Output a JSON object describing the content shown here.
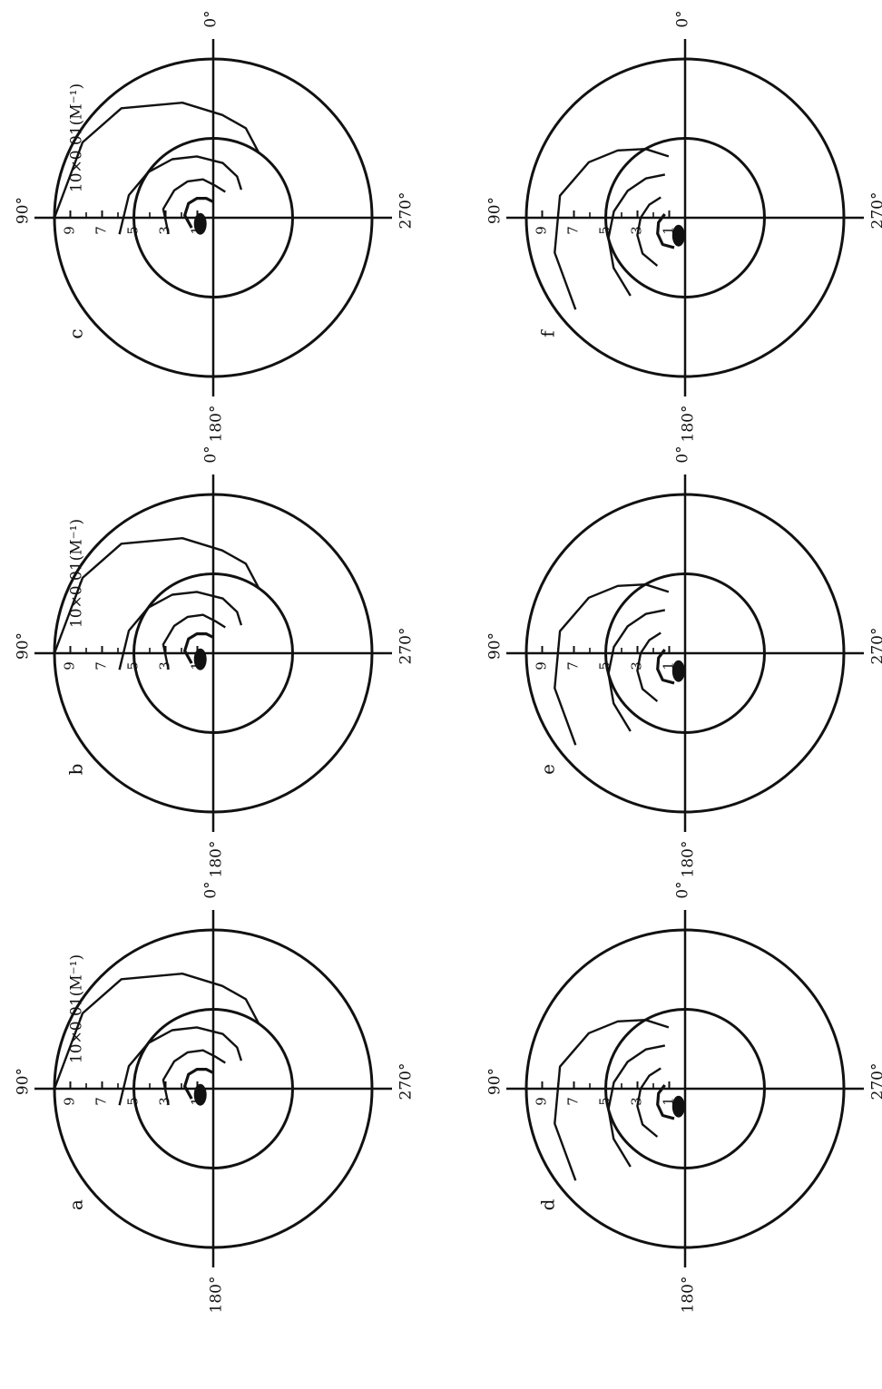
{
  "figure": {
    "panel_labels": [
      "a",
      "b",
      "c",
      "d",
      "e",
      "f"
    ],
    "angle_labels": {
      "right": "0°",
      "top": "90°",
      "left": "180°",
      "bottom": "270°"
    },
    "scale_text": "10×0.01(M⁻¹)",
    "radial_tick_labels": [
      "9",
      "7",
      "5",
      "3",
      "1"
    ],
    "line_color": "#111111"
  },
  "chart_data": [
    {
      "type": "polar-contour",
      "panel": "a",
      "angle_labels": [
        "0°",
        "90°",
        "180°",
        "270°"
      ],
      "radial_ticks": [
        1,
        3,
        5,
        7,
        9
      ],
      "scale": "10×0.01(M⁻¹)",
      "reference_circles": [
        5,
        10
      ],
      "contours": [
        {
          "level": "outer",
          "points": [
            [
              10,
              90
            ],
            [
              9.5,
              60
            ],
            [
              9,
              40
            ],
            [
              7.5,
              15
            ],
            [
              6.5,
              -5
            ],
            [
              6,
              -20
            ],
            [
              5,
              -35
            ]
          ]
        },
        {
          "level": 5,
          "points": [
            [
              6,
              100
            ],
            [
              5.5,
              75
            ],
            [
              5,
              55
            ],
            [
              4.5,
              35
            ],
            [
              4,
              15
            ],
            [
              3.5,
              -10
            ],
            [
              3,
              -30
            ],
            [
              2.5,
              -45
            ]
          ]
        },
        {
          "level": 3,
          "points": [
            [
              3,
              110
            ],
            [
              3.2,
              80
            ],
            [
              3,
              55
            ],
            [
              2.8,
              35
            ],
            [
              2.5,
              15
            ],
            [
              2,
              -5
            ],
            [
              1.8,
              -25
            ]
          ]
        },
        {
          "level": 1,
          "points": [
            [
              1.5,
              115
            ],
            [
              1.8,
              85
            ],
            [
              1.8,
              60
            ],
            [
              1.6,
              40
            ],
            [
              1.3,
              20
            ],
            [
              1,
              0
            ]
          ]
        }
      ]
    },
    {
      "type": "polar-contour",
      "panel": "b",
      "angle_labels": [
        "0°",
        "90°",
        "180°",
        "270°"
      ],
      "radial_ticks": [
        1,
        3,
        5,
        7,
        9
      ],
      "scale": "10×0.01(M⁻¹)",
      "reference_circles": [
        5,
        10
      ],
      "contours": [
        {
          "level": "outer",
          "points": [
            [
              10,
              90
            ],
            [
              9.5,
              60
            ],
            [
              9,
              40
            ],
            [
              7.5,
              15
            ],
            [
              6.5,
              -5
            ],
            [
              6,
              -20
            ],
            [
              5,
              -35
            ]
          ]
        },
        {
          "level": 5,
          "points": [
            [
              6,
              100
            ],
            [
              5.5,
              75
            ],
            [
              5,
              55
            ],
            [
              4.5,
              35
            ],
            [
              4,
              15
            ],
            [
              3.5,
              -10
            ],
            [
              3,
              -30
            ],
            [
              2.5,
              -45
            ]
          ]
        },
        {
          "level": 3,
          "points": [
            [
              3,
              110
            ],
            [
              3.2,
              80
            ],
            [
              3,
              55
            ],
            [
              2.8,
              35
            ],
            [
              2.5,
              15
            ],
            [
              2,
              -5
            ],
            [
              1.8,
              -25
            ]
          ]
        },
        {
          "level": 1,
          "points": [
            [
              1.5,
              115
            ],
            [
              1.8,
              85
            ],
            [
              1.8,
              60
            ],
            [
              1.6,
              40
            ],
            [
              1.3,
              20
            ],
            [
              1,
              0
            ]
          ]
        }
      ]
    },
    {
      "type": "polar-contour",
      "panel": "c",
      "angle_labels": [
        "0°",
        "90°",
        "180°",
        "270°"
      ],
      "radial_ticks": [
        1,
        3,
        5,
        7,
        9
      ],
      "scale": "10×0.01(M⁻¹)",
      "reference_circles": [
        5,
        10
      ],
      "contours": [
        {
          "level": "outer",
          "points": [
            [
              10,
              90
            ],
            [
              9.5,
              60
            ],
            [
              9,
              40
            ],
            [
              7.5,
              15
            ],
            [
              6.5,
              -5
            ],
            [
              6,
              -20
            ],
            [
              5,
              -35
            ]
          ]
        },
        {
          "level": 5,
          "points": [
            [
              6,
              100
            ],
            [
              5.5,
              75
            ],
            [
              5,
              55
            ],
            [
              4.5,
              35
            ],
            [
              4,
              15
            ],
            [
              3.5,
              -10
            ],
            [
              3,
              -30
            ],
            [
              2.5,
              -45
            ]
          ]
        },
        {
          "level": 3,
          "points": [
            [
              3,
              110
            ],
            [
              3.2,
              80
            ],
            [
              3,
              55
            ],
            [
              2.8,
              35
            ],
            [
              2.5,
              15
            ],
            [
              2,
              -5
            ],
            [
              1.8,
              -25
            ]
          ]
        },
        {
          "level": 1,
          "points": [
            [
              1.5,
              115
            ],
            [
              1.8,
              85
            ],
            [
              1.8,
              60
            ],
            [
              1.6,
              40
            ],
            [
              1.3,
              20
            ],
            [
              1,
              0
            ]
          ]
        }
      ]
    },
    {
      "type": "polar-contour",
      "panel": "d",
      "angle_labels": [
        "0°",
        "90°",
        "180°",
        "270°"
      ],
      "radial_ticks": [
        1,
        3,
        5,
        7,
        9
      ],
      "reference_circles": [
        5,
        10
      ],
      "contours": [
        {
          "level": "outer",
          "points": [
            [
              9,
              130
            ],
            [
              8.5,
              105
            ],
            [
              8,
              80
            ],
            [
              7,
              60
            ],
            [
              6,
              45
            ],
            [
              5,
              30
            ],
            [
              4,
              15
            ]
          ]
        },
        {
          "level": 5,
          "points": [
            [
              6,
              145
            ],
            [
              5.5,
              125
            ],
            [
              5,
              105
            ],
            [
              4.5,
              85
            ],
            [
              4,
              65
            ],
            [
              3.5,
              45
            ],
            [
              3,
              25
            ]
          ]
        },
        {
          "level": 3,
          "points": [
            [
              3.5,
              150
            ],
            [
              3.5,
              130
            ],
            [
              3.2,
              110
            ],
            [
              2.8,
              90
            ],
            [
              2.4,
              70
            ],
            [
              2,
              50
            ]
          ]
        },
        {
          "level": 1,
          "points": [
            [
              2,
              160
            ],
            [
              2.2,
              140
            ],
            [
              2,
              120
            ],
            [
              1.7,
              100
            ],
            [
              1.3,
              80
            ]
          ]
        }
      ]
    },
    {
      "type": "polar-contour",
      "panel": "e",
      "angle_labels": [
        "0°",
        "90°",
        "180°",
        "270°"
      ],
      "radial_ticks": [
        1,
        3,
        5,
        7,
        9
      ],
      "reference_circles": [
        5,
        10
      ],
      "contours": [
        {
          "level": "outer",
          "points": [
            [
              9,
              130
            ],
            [
              8.5,
              105
            ],
            [
              8,
              80
            ],
            [
              7,
              60
            ],
            [
              6,
              45
            ],
            [
              5,
              30
            ],
            [
              4,
              15
            ]
          ]
        },
        {
          "level": 5,
          "points": [
            [
              6,
              145
            ],
            [
              5.5,
              125
            ],
            [
              5,
              105
            ],
            [
              4.5,
              85
            ],
            [
              4,
              65
            ],
            [
              3.5,
              45
            ],
            [
              3,
              25
            ]
          ]
        },
        {
          "level": 3,
          "points": [
            [
              3.5,
              150
            ],
            [
              3.5,
              130
            ],
            [
              3.2,
              110
            ],
            [
              2.8,
              90
            ],
            [
              2.4,
              70
            ],
            [
              2,
              50
            ]
          ]
        },
        {
          "level": 1,
          "points": [
            [
              2,
              160
            ],
            [
              2.2,
              140
            ],
            [
              2,
              120
            ],
            [
              1.7,
              100
            ],
            [
              1.3,
              80
            ]
          ]
        }
      ]
    },
    {
      "type": "polar-contour",
      "panel": "f",
      "angle_labels": [
        "0°",
        "90°",
        "180°",
        "270°"
      ],
      "radial_ticks": [
        1,
        3,
        5,
        7,
        9
      ],
      "reference_circles": [
        5,
        10
      ],
      "contours": [
        {
          "level": "outer",
          "points": [
            [
              9,
              130
            ],
            [
              8.5,
              105
            ],
            [
              8,
              80
            ],
            [
              7,
              60
            ],
            [
              6,
              45
            ],
            [
              5,
              30
            ],
            [
              4,
              15
            ]
          ]
        },
        {
          "level": 5,
          "points": [
            [
              6,
              145
            ],
            [
              5.5,
              125
            ],
            [
              5,
              105
            ],
            [
              4.5,
              85
            ],
            [
              4,
              65
            ],
            [
              3.5,
              45
            ],
            [
              3,
              25
            ]
          ]
        },
        {
          "level": 3,
          "points": [
            [
              3.5,
              150
            ],
            [
              3.5,
              130
            ],
            [
              3.2,
              110
            ],
            [
              2.8,
              90
            ],
            [
              2.4,
              70
            ],
            [
              2,
              50
            ]
          ]
        },
        {
          "level": 1,
          "points": [
            [
              2,
              160
            ],
            [
              2.2,
              140
            ],
            [
              2,
              120
            ],
            [
              1.7,
              100
            ],
            [
              1.3,
              80
            ]
          ]
        }
      ]
    }
  ]
}
